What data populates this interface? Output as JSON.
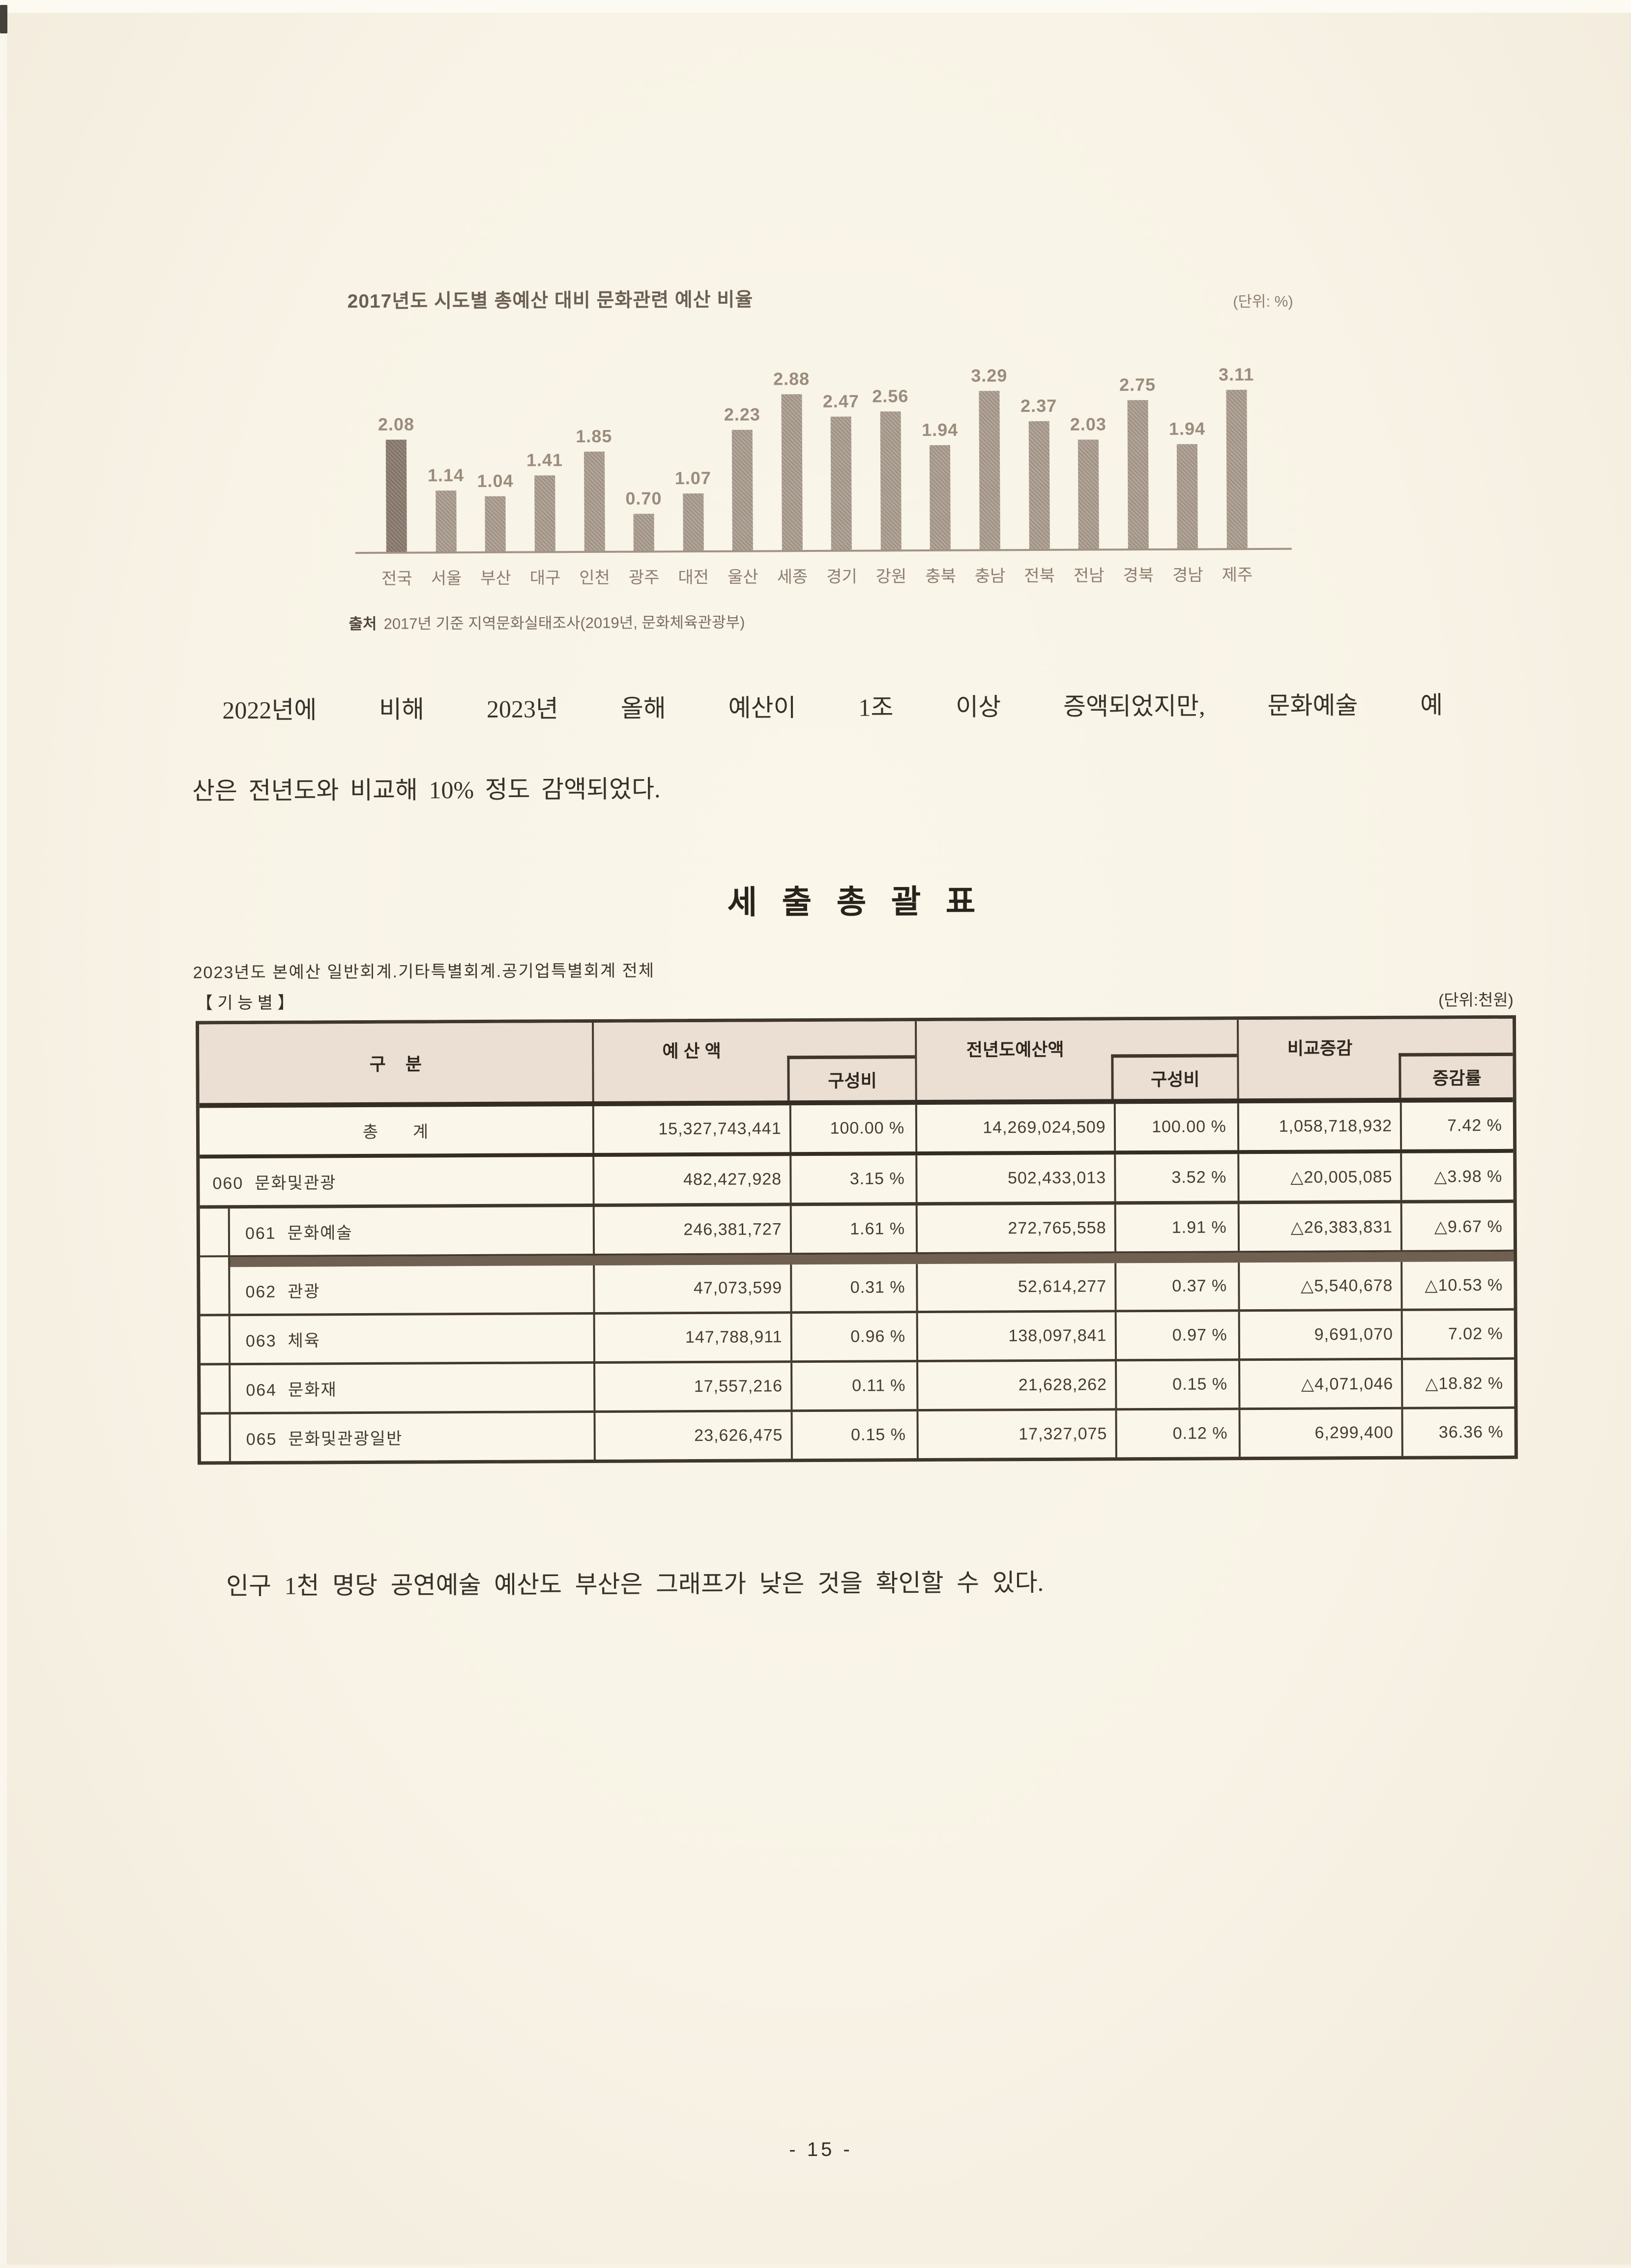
{
  "colors": {
    "paper": "#f9f4e7",
    "bar": "#a7998b",
    "bar_highlight": "#8b7b6e",
    "table_border": "#43392e",
    "table_header_bg": "#eadfd2",
    "emphasis_band": "#6f6052",
    "body_text": "#38312a"
  },
  "chart_data": {
    "type": "bar",
    "title": "2017년도 시도별 총예산 대비 문화관련 예산 비율",
    "unit_label": "(단위: %)",
    "categories": [
      "전국",
      "서울",
      "부산",
      "대구",
      "인천",
      "광주",
      "대전",
      "울산",
      "세종",
      "경기",
      "강원",
      "충북",
      "충남",
      "전북",
      "전남",
      "경북",
      "경남",
      "제주"
    ],
    "values": [
      2.08,
      1.14,
      1.04,
      1.41,
      1.85,
      0.7,
      1.07,
      2.23,
      2.88,
      2.47,
      2.56,
      1.94,
      3.29,
      2.37,
      2.03,
      2.75,
      1.94,
      3.11
    ],
    "ylim": [
      0,
      3.5
    ],
    "grid": false,
    "legend_position": "none",
    "value_labels": true,
    "highlight_category": "전국",
    "xlabel": "",
    "ylabel": "",
    "source_prefix": "출처",
    "source_text": "2017년 기준 지역문화실태조사(2019년, 문화체육관광부)"
  },
  "paragraphs": {
    "p1_line1": "2022년에 비해 2023년 올해 예산이 1조 이상 증액되었지만, 문화예술 예",
    "p1_line2": "산은 전년도와 비교해 10% 정도 감액되었다.",
    "p2": "인구 1천 명당 공연예술 예산도 부산은 그래프가 낮은 것을 확인할 수 있다."
  },
  "table": {
    "title": "세 출 총 괄 표",
    "subtitle": "2023년도 본예산 일반회계.기타특별회계.공기업특별회계 전체",
    "section_label": "【 기 능 별 】",
    "unit_label": "(단위:천원)",
    "headers": {
      "category": "구    분",
      "budget": "예 산 액",
      "ratio1": "구성비",
      "prev_budget": "전년도예산액",
      "ratio2": "구성비",
      "diff": "비교증감",
      "diff_rate": "증감률"
    },
    "rows": [
      {
        "category": "총      계",
        "budget": "15,327,743,441",
        "ratio1": "100.00 %",
        "prev": "14,269,024,509",
        "ratio2": "100.00 %",
        "diff": "1,058,718,932",
        "rate": "7.42 %"
      },
      {
        "category": "060  문화및관광",
        "budget": "482,427,928",
        "ratio1": "3.15 %",
        "prev": "502,433,013",
        "ratio2": "3.52 %",
        "diff": "△20,005,085",
        "rate": "△3.98 %"
      },
      {
        "category": "061  문화예술",
        "budget": "246,381,727",
        "ratio1": "1.61 %",
        "prev": "272,765,558",
        "ratio2": "1.91 %",
        "diff": "△26,383,831",
        "rate": "△9.67 %"
      },
      {
        "category": "062  관광",
        "budget": "47,073,599",
        "ratio1": "0.31 %",
        "prev": "52,614,277",
        "ratio2": "0.37 %",
        "diff": "△5,540,678",
        "rate": "△10.53 %"
      },
      {
        "category": "063  체육",
        "budget": "147,788,911",
        "ratio1": "0.96 %",
        "prev": "138,097,841",
        "ratio2": "0.97 %",
        "diff": "9,691,070",
        "rate": "7.02 %"
      },
      {
        "category": "064  문화재",
        "budget": "17,557,216",
        "ratio1": "0.11 %",
        "prev": "21,628,262",
        "ratio2": "0.15 %",
        "diff": "△4,071,046",
        "rate": "△18.82 %"
      },
      {
        "category": "065  문화및관광일반",
        "budget": "23,626,475",
        "ratio1": "0.15 %",
        "prev": "17,327,075",
        "ratio2": "0.12 %",
        "diff": "6,299,400",
        "rate": "36.36 %"
      }
    ]
  },
  "footer": {
    "page_number": "- 15 -"
  }
}
